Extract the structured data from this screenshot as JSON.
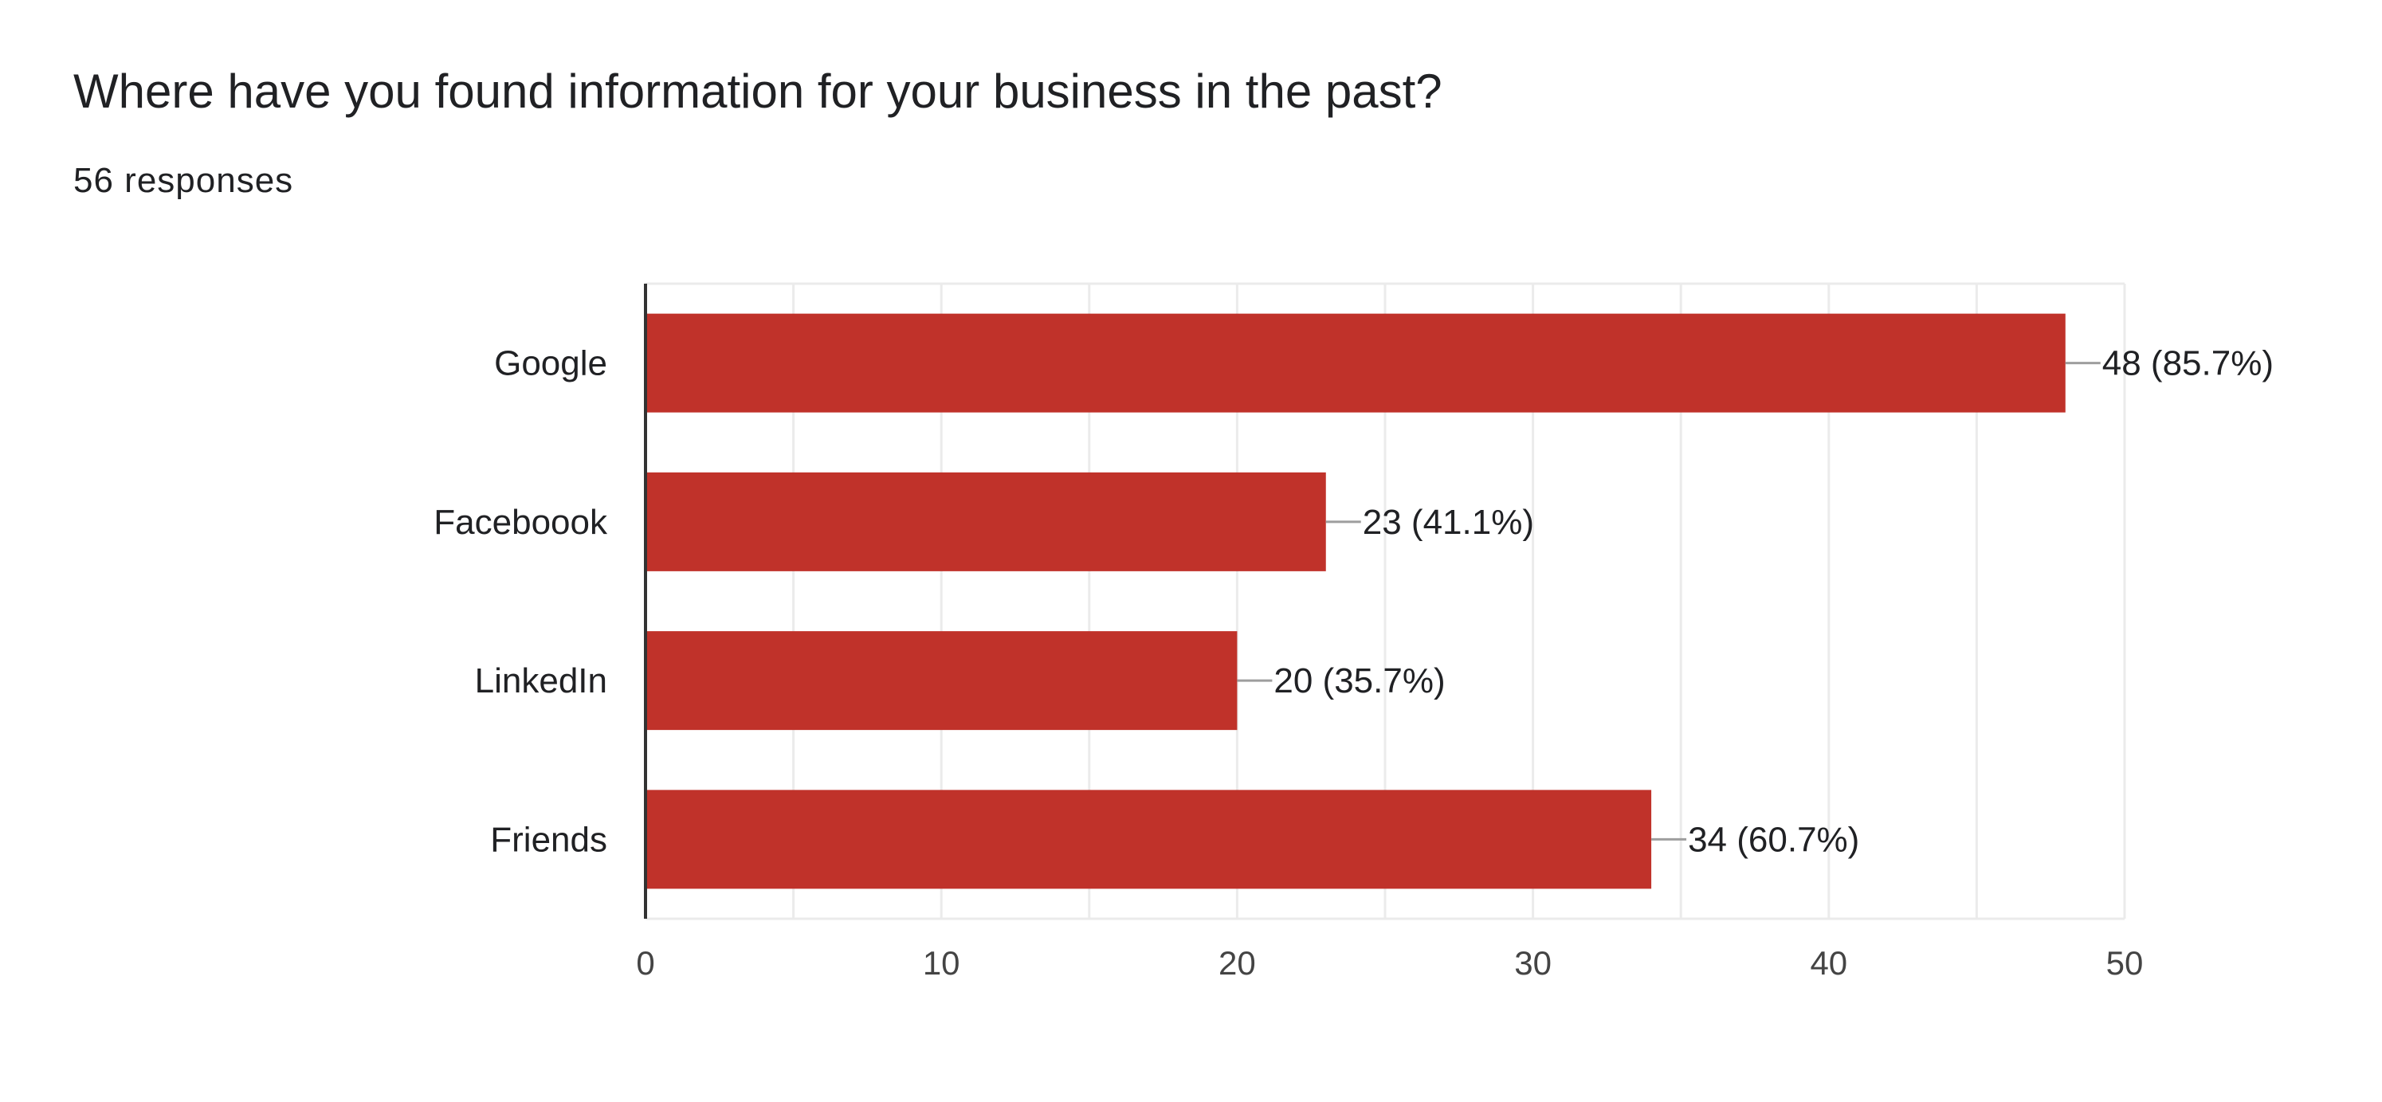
{
  "question": {
    "title": "Where have you found information for your business in the past?",
    "responses": "56 responses"
  },
  "colors": {
    "bar": "#c0322a",
    "grid": "#ebebeb",
    "axis": "#333333",
    "text": "#202124",
    "tick_text": "#444444",
    "leader": "#9e9e9e"
  },
  "chart_data": {
    "type": "bar",
    "orientation": "horizontal",
    "categories": [
      "Google",
      "Faceboook",
      "LinkedIn",
      "Friends"
    ],
    "values": [
      48,
      23,
      20,
      34
    ],
    "percentages": [
      "85.7%",
      "41.1%",
      "35.7%",
      "60.7%"
    ],
    "data_labels": [
      "48 (85.7%)",
      "23 (41.1%)",
      "20 (35.7%)",
      "34 (60.7%)"
    ],
    "x_ticks": [
      0,
      10,
      20,
      30,
      40,
      50
    ],
    "xlim": [
      0,
      50
    ],
    "grid": true,
    "legend": "none"
  }
}
